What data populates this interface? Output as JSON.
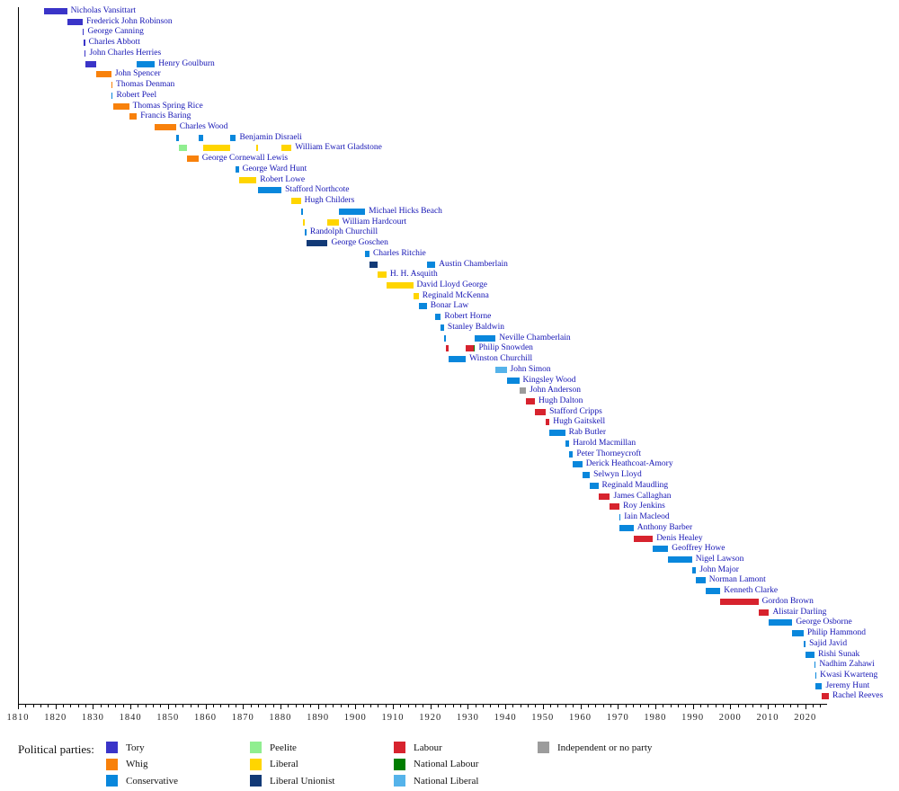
{
  "chart_data": {
    "type": "bar",
    "variant": "gantt-timeline-of-uk-chancellors",
    "title": "",
    "x_axis": {
      "min": 1810,
      "max": 2025.6,
      "tick_years": [
        1810,
        1820,
        1830,
        1840,
        1850,
        1860,
        1870,
        1880,
        1890,
        1900,
        1910,
        1920,
        1930,
        1940,
        1950,
        1960,
        1970,
        1980,
        1990,
        2000,
        2010,
        2020
      ],
      "minor_tick_step": 2,
      "minor_tick_last": 2024
    },
    "parties": {
      "tory": {
        "label": "Tory",
        "color": "#3a34c8"
      },
      "whig": {
        "label": "Whig",
        "color": "#f8810b"
      },
      "conservative": {
        "label": "Conservative",
        "color": "#0987dc"
      },
      "peelite": {
        "label": "Peelite",
        "color": "#90ee90"
      },
      "liberal": {
        "label": "Liberal",
        "color": "#ffd500"
      },
      "liberal_unionist": {
        "label": "Liberal Unionist",
        "color": "#123a77"
      },
      "labour": {
        "label": "Labour",
        "color": "#d7232e"
      },
      "national_labour": {
        "label": "National Labour",
        "color": "#007d00"
      },
      "national_liberal": {
        "label": "National Liberal",
        "color": "#55b3ea"
      },
      "independent": {
        "label": "Independent or no party",
        "color": "#9c9c9c"
      }
    },
    "legend": {
      "title": "Political parties:",
      "columns": [
        [
          "tory",
          "whig",
          "conservative"
        ],
        [
          "peelite",
          "liberal",
          "liberal_unionist"
        ],
        [
          "labour",
          "national_labour",
          "national_liberal"
        ],
        [
          "independent"
        ]
      ]
    },
    "chancellors": [
      {
        "name": "Nicholas Vansittart",
        "terms": [
          {
            "start": 1817.0,
            "end": 1823.1,
            "party": "tory"
          }
        ]
      },
      {
        "name": "Frederick John Robinson",
        "terms": [
          {
            "start": 1823.1,
            "end": 1827.3,
            "party": "tory"
          }
        ]
      },
      {
        "name": "George Canning",
        "terms": [
          {
            "start": 1827.3,
            "end": 1827.62,
            "party": "tory"
          }
        ]
      },
      {
        "name": "Charles Abbott",
        "terms": [
          {
            "start": 1827.62,
            "end": 1827.73,
            "party": "tory"
          }
        ]
      },
      {
        "name": "John Charles Herries",
        "terms": [
          {
            "start": 1827.7,
            "end": 1828.1,
            "party": "tory"
          }
        ]
      },
      {
        "name": "Henry Goulburn",
        "terms": [
          {
            "start": 1828.1,
            "end": 1830.9,
            "party": "tory"
          },
          {
            "start": 1841.7,
            "end": 1846.5,
            "party": "conservative"
          }
        ]
      },
      {
        "name": "John Spencer",
        "terms": [
          {
            "start": 1830.9,
            "end": 1834.9,
            "party": "whig"
          }
        ]
      },
      {
        "name": "Thomas Denman",
        "terms": [
          {
            "start": 1834.9,
            "end": 1834.98,
            "party": "whig"
          }
        ]
      },
      {
        "name": "Robert Peel",
        "terms": [
          {
            "start": 1834.95,
            "end": 1835.3,
            "party": "conservative"
          }
        ]
      },
      {
        "name": "Thomas Spring Rice",
        "terms": [
          {
            "start": 1835.3,
            "end": 1839.65,
            "party": "whig"
          }
        ]
      },
      {
        "name": "Francis Baring",
        "terms": [
          {
            "start": 1839.65,
            "end": 1841.7,
            "party": "whig"
          }
        ]
      },
      {
        "name": "Charles Wood",
        "terms": [
          {
            "start": 1846.5,
            "end": 1852.15,
            "party": "whig"
          }
        ]
      },
      {
        "name": "Benjamin Disraeli",
        "terms": [
          {
            "start": 1852.15,
            "end": 1852.95,
            "party": "conservative"
          },
          {
            "start": 1858.15,
            "end": 1859.45,
            "party": "conservative"
          },
          {
            "start": 1866.5,
            "end": 1868.15,
            "party": "conservative"
          }
        ]
      },
      {
        "name": "William Ewart Gladstone",
        "terms": [
          {
            "start": 1852.95,
            "end": 1855.1,
            "party": "peelite"
          },
          {
            "start": 1859.45,
            "end": 1866.5,
            "party": "liberal"
          },
          {
            "start": 1873.6,
            "end": 1874.1,
            "party": "liberal"
          },
          {
            "start": 1880.3,
            "end": 1882.95,
            "party": "liberal"
          }
        ]
      },
      {
        "name": "George Cornewall Lewis",
        "terms": [
          {
            "start": 1855.1,
            "end": 1858.15,
            "party": "whig"
          }
        ]
      },
      {
        "name": "George Ward Hunt",
        "terms": [
          {
            "start": 1868.15,
            "end": 1868.9,
            "party": "conservative"
          }
        ]
      },
      {
        "name": "Robert Lowe",
        "terms": [
          {
            "start": 1868.9,
            "end": 1873.6,
            "party": "liberal"
          }
        ]
      },
      {
        "name": "Stafford Northcote",
        "terms": [
          {
            "start": 1874.1,
            "end": 1880.3,
            "party": "conservative"
          }
        ]
      },
      {
        "name": "Hugh Childers",
        "terms": [
          {
            "start": 1882.95,
            "end": 1885.45,
            "party": "liberal"
          }
        ]
      },
      {
        "name": "Michael Hicks Beach",
        "terms": [
          {
            "start": 1885.45,
            "end": 1886.1,
            "party": "conservative"
          },
          {
            "start": 1895.5,
            "end": 1902.6,
            "party": "conservative"
          }
        ]
      },
      {
        "name": "William Hardcourt",
        "terms": [
          {
            "start": 1886.1,
            "end": 1886.6,
            "party": "liberal"
          },
          {
            "start": 1892.6,
            "end": 1895.5,
            "party": "liberal"
          }
        ]
      },
      {
        "name": "Randolph Churchill",
        "terms": [
          {
            "start": 1886.6,
            "end": 1886.95,
            "party": "conservative"
          }
        ]
      },
      {
        "name": "George Goschen",
        "terms": [
          {
            "start": 1887.0,
            "end": 1892.6,
            "party": "liberal_unionist"
          }
        ]
      },
      {
        "name": "Charles Ritchie",
        "terms": [
          {
            "start": 1902.6,
            "end": 1903.75,
            "party": "conservative"
          }
        ]
      },
      {
        "name": "Austin Chamberlain",
        "terms": [
          {
            "start": 1903.75,
            "end": 1905.9,
            "party": "liberal_unionist"
          },
          {
            "start": 1919.05,
            "end": 1921.3,
            "party": "conservative"
          }
        ]
      },
      {
        "name": "H. H. Asquith",
        "terms": [
          {
            "start": 1905.9,
            "end": 1908.3,
            "party": "liberal"
          }
        ]
      },
      {
        "name": "David Lloyd George",
        "terms": [
          {
            "start": 1908.3,
            "end": 1915.4,
            "party": "liberal"
          }
        ]
      },
      {
        "name": "Reginald McKenna",
        "terms": [
          {
            "start": 1915.4,
            "end": 1916.9,
            "party": "liberal"
          }
        ]
      },
      {
        "name": "Bonar Law",
        "terms": [
          {
            "start": 1916.9,
            "end": 1919.05,
            "party": "conservative"
          }
        ]
      },
      {
        "name": "Robert Horne",
        "terms": [
          {
            "start": 1921.3,
            "end": 1922.8,
            "party": "conservative"
          }
        ]
      },
      {
        "name": "Stanley Baldwin",
        "terms": [
          {
            "start": 1922.8,
            "end": 1923.65,
            "party": "conservative"
          }
        ]
      },
      {
        "name": "Neville Chamberlain",
        "terms": [
          {
            "start": 1923.65,
            "end": 1924.05,
            "party": "conservative"
          },
          {
            "start": 1931.85,
            "end": 1937.4,
            "party": "conservative"
          }
        ]
      },
      {
        "name": "Philip Snowden",
        "terms": [
          {
            "start": 1924.05,
            "end": 1924.85,
            "party": "labour"
          },
          {
            "start": 1929.45,
            "end": 1931.65,
            "party": "labour"
          },
          {
            "start": 1931.65,
            "end": 1931.9,
            "party": "national_labour"
          }
        ]
      },
      {
        "name": "Winston Churchill",
        "terms": [
          {
            "start": 1924.85,
            "end": 1929.45,
            "party": "conservative"
          }
        ]
      },
      {
        "name": "John Simon",
        "terms": [
          {
            "start": 1937.4,
            "end": 1940.35,
            "party": "national_liberal"
          }
        ]
      },
      {
        "name": "Kingsley Wood",
        "terms": [
          {
            "start": 1940.35,
            "end": 1943.7,
            "party": "conservative"
          }
        ]
      },
      {
        "name": "John Anderson",
        "terms": [
          {
            "start": 1943.7,
            "end": 1945.55,
            "party": "independent"
          }
        ]
      },
      {
        "name": "Hugh Dalton",
        "terms": [
          {
            "start": 1945.55,
            "end": 1947.9,
            "party": "labour"
          }
        ]
      },
      {
        "name": "Stafford Cripps",
        "terms": [
          {
            "start": 1947.9,
            "end": 1950.8,
            "party": "labour"
          }
        ]
      },
      {
        "name": "Hugh Gaitskell",
        "terms": [
          {
            "start": 1950.8,
            "end": 1951.8,
            "party": "labour"
          }
        ]
      },
      {
        "name": "Rab Butler",
        "terms": [
          {
            "start": 1951.8,
            "end": 1955.95,
            "party": "conservative"
          }
        ]
      },
      {
        "name": "Harold Macmillan",
        "terms": [
          {
            "start": 1955.95,
            "end": 1957.05,
            "party": "conservative"
          }
        ]
      },
      {
        "name": "Peter Thorneycroft",
        "terms": [
          {
            "start": 1957.05,
            "end": 1958.05,
            "party": "conservative"
          }
        ]
      },
      {
        "name": "Derick Heathcoat-Amory",
        "terms": [
          {
            "start": 1958.05,
            "end": 1960.55,
            "party": "conservative"
          }
        ]
      },
      {
        "name": "Selwyn Lloyd",
        "terms": [
          {
            "start": 1960.55,
            "end": 1962.55,
            "party": "conservative"
          }
        ]
      },
      {
        "name": "Reginald Maudling",
        "terms": [
          {
            "start": 1962.55,
            "end": 1964.8,
            "party": "conservative"
          }
        ]
      },
      {
        "name": "James Callaghan",
        "terms": [
          {
            "start": 1964.8,
            "end": 1967.9,
            "party": "labour"
          }
        ]
      },
      {
        "name": "Roy Jenkins",
        "terms": [
          {
            "start": 1967.9,
            "end": 1970.45,
            "party": "labour"
          }
        ]
      },
      {
        "name": "Iain Macleod",
        "terms": [
          {
            "start": 1970.45,
            "end": 1970.55,
            "party": "conservative"
          }
        ]
      },
      {
        "name": "Anthony Barber",
        "terms": [
          {
            "start": 1970.55,
            "end": 1974.2,
            "party": "conservative"
          }
        ]
      },
      {
        "name": "Denis Healey",
        "terms": [
          {
            "start": 1974.2,
            "end": 1979.35,
            "party": "labour"
          }
        ]
      },
      {
        "name": "Geoffrey Howe",
        "terms": [
          {
            "start": 1979.35,
            "end": 1983.45,
            "party": "conservative"
          }
        ]
      },
      {
        "name": "Nigel Lawson",
        "terms": [
          {
            "start": 1983.45,
            "end": 1989.8,
            "party": "conservative"
          }
        ]
      },
      {
        "name": "John Major",
        "terms": [
          {
            "start": 1989.8,
            "end": 1990.9,
            "party": "conservative"
          }
        ]
      },
      {
        "name": "Norman Lamont",
        "terms": [
          {
            "start": 1990.9,
            "end": 1993.4,
            "party": "conservative"
          }
        ]
      },
      {
        "name": "Kenneth Clarke",
        "terms": [
          {
            "start": 1993.4,
            "end": 1997.35,
            "party": "conservative"
          }
        ]
      },
      {
        "name": "Gordon Brown",
        "terms": [
          {
            "start": 1997.35,
            "end": 2007.5,
            "party": "labour"
          }
        ]
      },
      {
        "name": "Alistair Darling",
        "terms": [
          {
            "start": 2007.5,
            "end": 2010.35,
            "party": "labour"
          }
        ]
      },
      {
        "name": "George Osborne",
        "terms": [
          {
            "start": 2010.35,
            "end": 2016.55,
            "party": "conservative"
          }
        ]
      },
      {
        "name": "Philip Hammond",
        "terms": [
          {
            "start": 2016.55,
            "end": 2019.55,
            "party": "conservative"
          }
        ]
      },
      {
        "name": "Sajid Javid",
        "terms": [
          {
            "start": 2019.55,
            "end": 2020.1,
            "party": "conservative"
          }
        ]
      },
      {
        "name": "Rishi Sunak",
        "terms": [
          {
            "start": 2020.1,
            "end": 2022.5,
            "party": "conservative"
          }
        ]
      },
      {
        "name": "Nadhim Zahawi",
        "terms": [
          {
            "start": 2022.5,
            "end": 2022.7,
            "party": "conservative"
          }
        ]
      },
      {
        "name": "Kwasi Kwarteng",
        "terms": [
          {
            "start": 2022.7,
            "end": 2022.82,
            "party": "conservative"
          }
        ]
      },
      {
        "name": "Jeremy Hunt",
        "terms": [
          {
            "start": 2022.82,
            "end": 2024.5,
            "party": "conservative"
          }
        ]
      },
      {
        "name": "Rachel Reeves",
        "terms": [
          {
            "start": 2024.4,
            "end": 2026.3,
            "party": "labour"
          }
        ]
      }
    ]
  }
}
